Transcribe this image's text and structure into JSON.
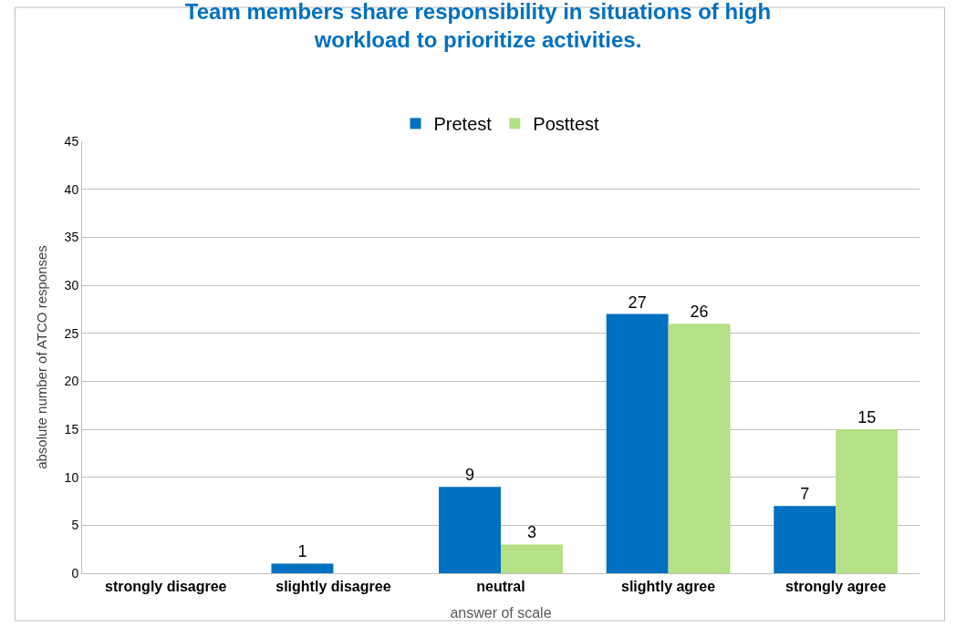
{
  "chart_data": {
    "type": "bar",
    "title": "Team members share responsibility in situations of high\nworkload to prioritize activities.",
    "xlabel": "answer of scale",
    "ylabel": "absolute number of ATCO responses",
    "categories": [
      "strongly disagree",
      "slightly disagree",
      "neutral",
      "slightly agree",
      "strongly agree"
    ],
    "series": [
      {
        "name": "Pretest",
        "color": "#0070c0",
        "values": [
          null,
          1,
          9,
          27,
          7
        ]
      },
      {
        "name": "Posttest",
        "color": "#b5e085",
        "values": [
          null,
          null,
          3,
          26,
          15
        ]
      }
    ],
    "ylim": [
      0,
      45
    ],
    "yticks": [
      0,
      5,
      10,
      15,
      20,
      25,
      30,
      35,
      40,
      45
    ],
    "grid": "y",
    "legend": "top",
    "data_labels": true
  }
}
